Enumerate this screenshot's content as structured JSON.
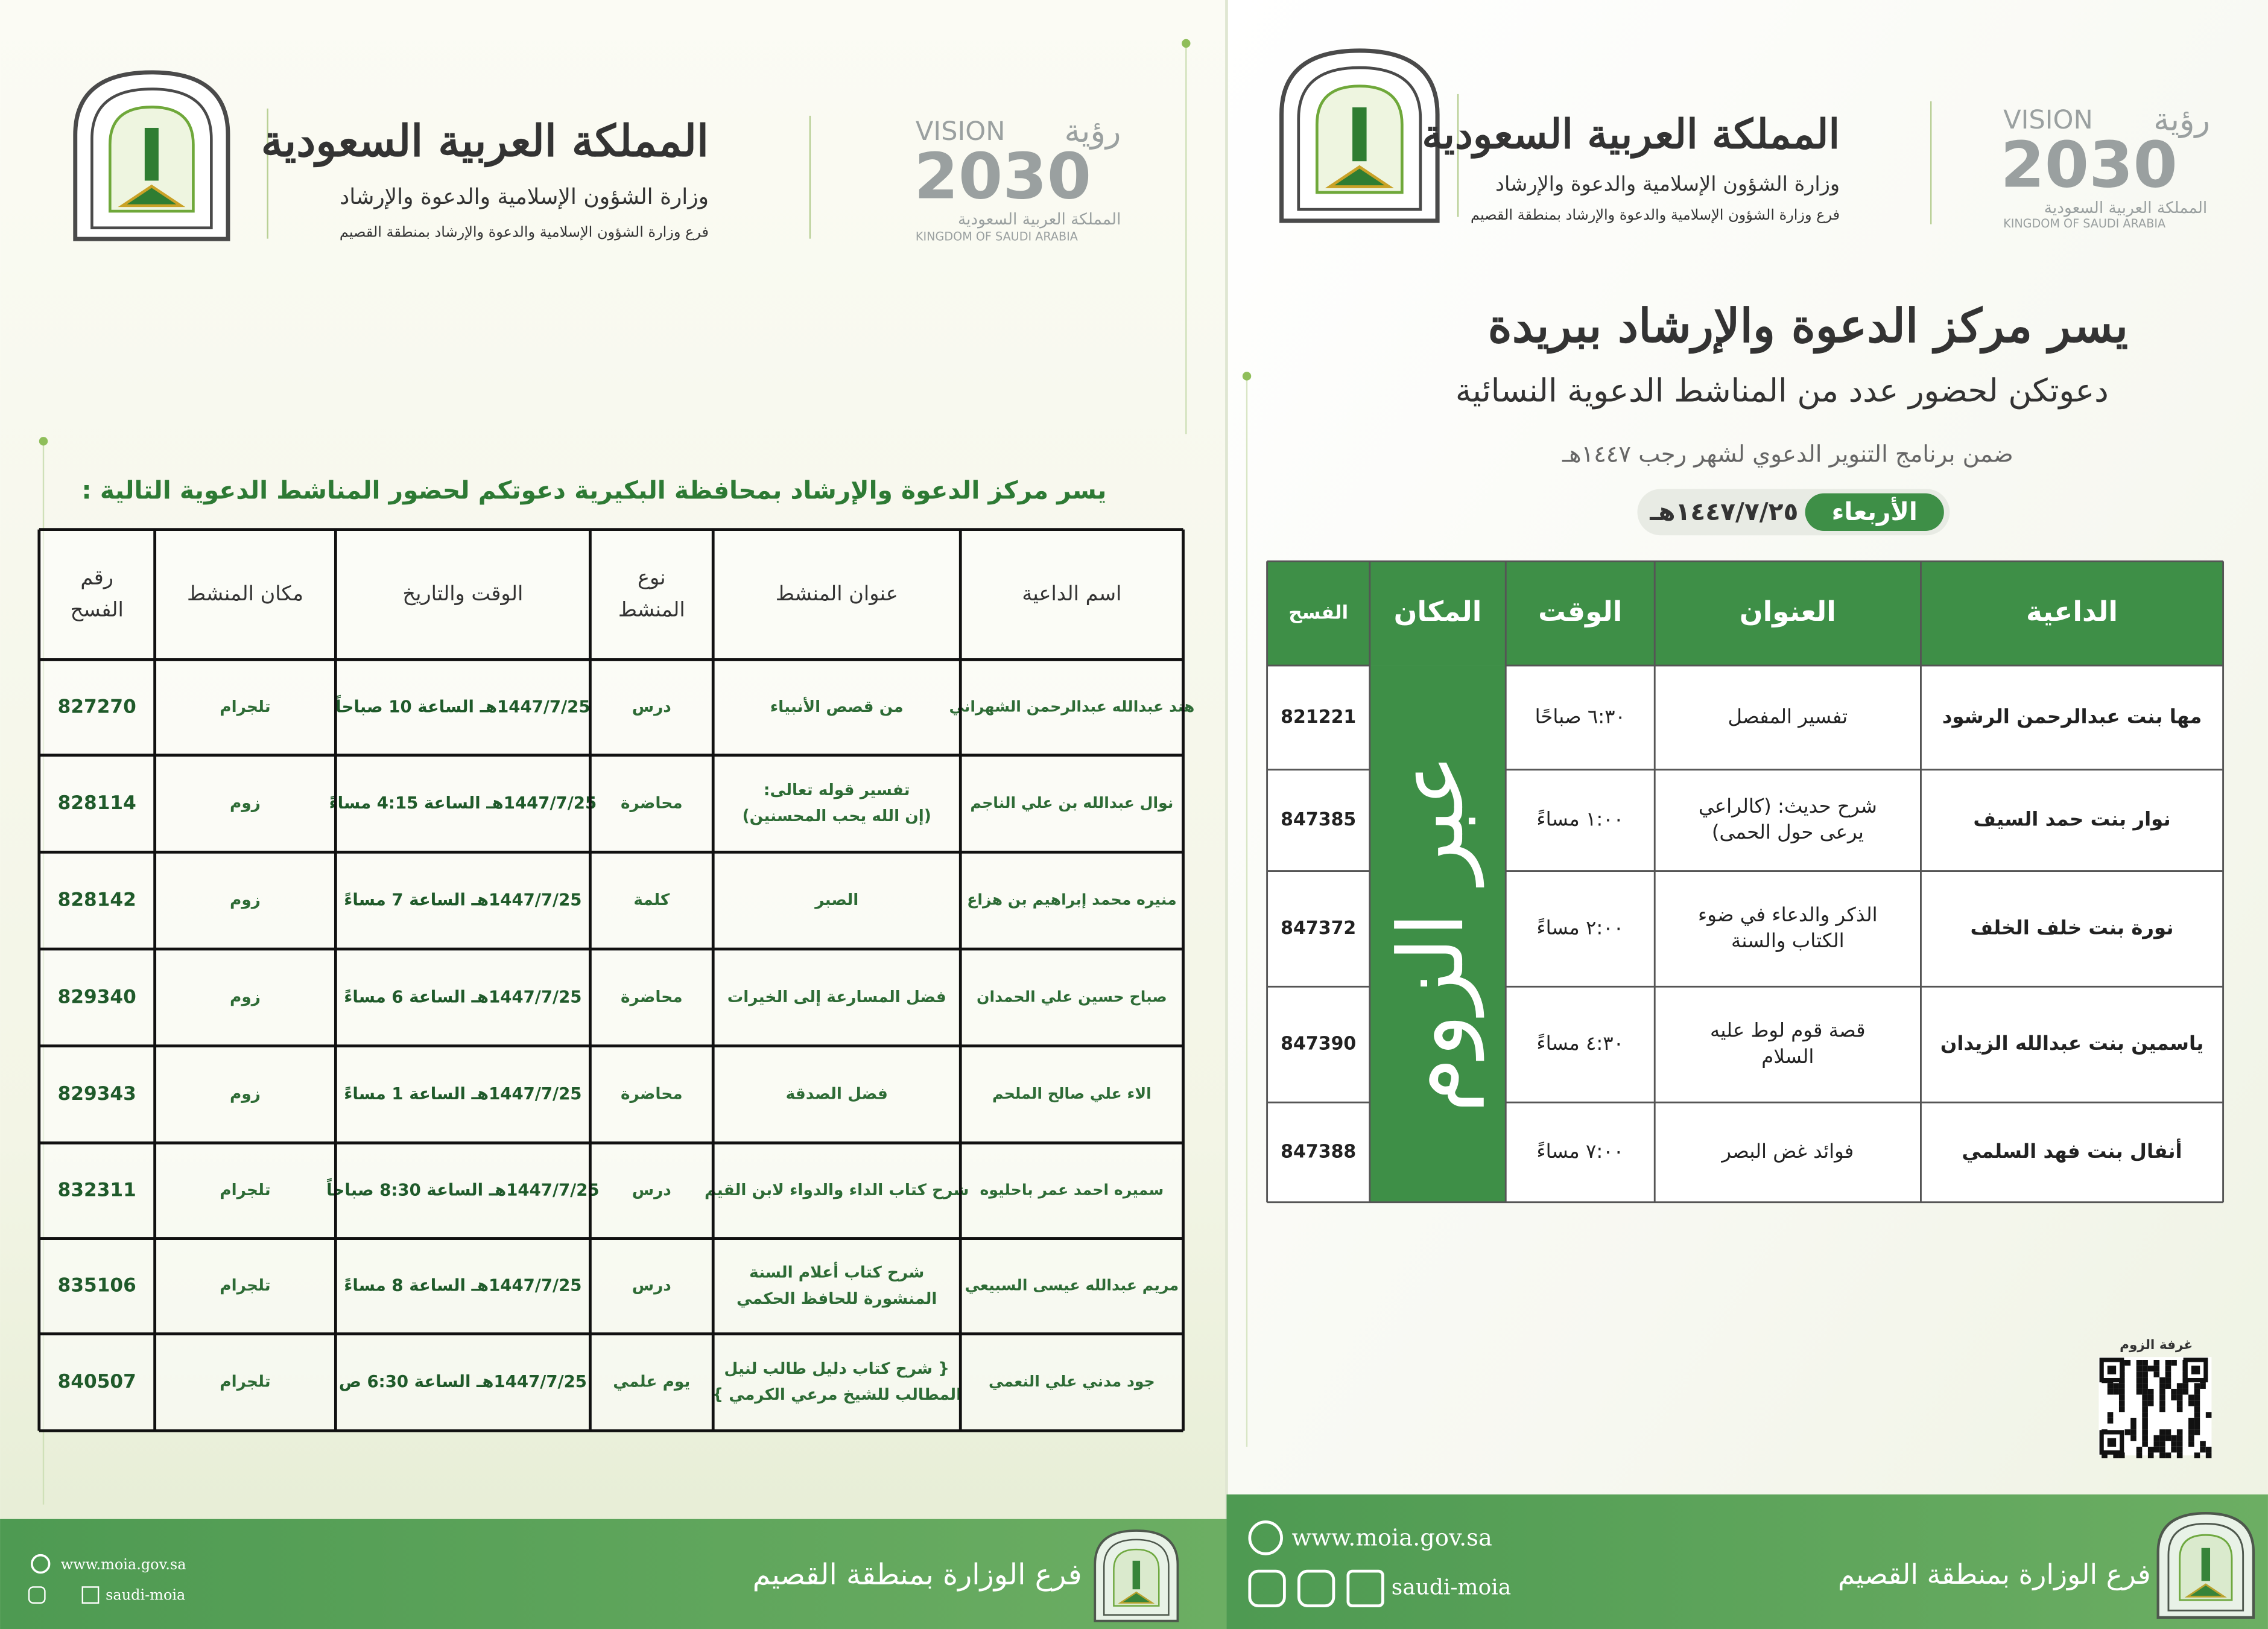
{
  "left": {
    "header": {
      "kingdom": "المملكة العربية السعودية",
      "ministry": "وزارة الشؤون الإسلامية والدعوة والإرشاد",
      "branch": "فرع وزارة الشؤون الإسلامية والدعوة والإرشاد بمنطقة القصيم"
    },
    "vision": {
      "word": "رؤية",
      "label": "VISION",
      "year": "2030",
      "country_ar": "المملكة العربية السعودية",
      "country_en": "KINGDOM OF SAUDI ARABIA"
    },
    "intro": "يسر مركز الدعوة والإرشاد بمحافظة البكيرية دعوتكم لحضور المناشط الدعوية التالية :",
    "table": {
      "headers": [
        "اسم الداعية",
        "عنوان المنشط",
        [
          "نوع",
          "المنشط"
        ],
        "الوقت والتاريخ",
        "مكان المنشط",
        [
          "رقم",
          "الفسح"
        ]
      ],
      "rows": [
        [
          "هند عبدالله عبدالرحمن الشهراني",
          "من قصص الأنبياء",
          "درس",
          "1447/7/25هـ الساعة 10 صباحاً",
          "تلجرام",
          "827270"
        ],
        [
          "نوال عبدالله بن علي الناجم",
          [
            "تفسير قوله تعالى:",
            "(إن الله يحب المحسنين)"
          ],
          "محاضرة",
          "1447/7/25هـ الساعة 4:15 مساءً",
          "زوم",
          "828114"
        ],
        [
          "منيره محمد إبراهيم بن هزاع",
          "الصبر",
          "كلمة",
          "1447/7/25هـ الساعة 7 مساءً",
          "زوم",
          "828142"
        ],
        [
          "صباح حسين علي الحمدان",
          "فضل المسارعة إلى الخيرات",
          "محاضرة",
          "1447/7/25هـ الساعة 6 مساءً",
          "زوم",
          "829340"
        ],
        [
          "الاء علي صالح الملحم",
          "فضل الصدقة",
          "محاضرة",
          "1447/7/25هـ الساعة 1 مساءً",
          "زوم",
          "829343"
        ],
        [
          "سميره احمد عمر باحليوه",
          "شرح كتاب الداء والدواء لابن القيم",
          "درس",
          "1447/7/25هـ الساعة 8:30 صباحاً",
          "تلجرام",
          "832311"
        ],
        [
          "مريم عبدالله عيسى السبيعي",
          [
            "شرح كتاب أعلام السنة",
            "المنشورة للحافظ الحكمي"
          ],
          "درس",
          "1447/7/25هـ الساعة 8 مساءً",
          "تلجرام",
          "835106"
        ],
        [
          "جود مدني علي النعمي",
          [
            "{ شرح كتاب دليل طالب لنيل",
            "المطالب للشيخ مرعي الكرمي }"
          ],
          "يوم علمي",
          "1447/7/25هـ الساعة 6:30 ص",
          "تلجرام",
          "840507"
        ]
      ]
    },
    "footer": {
      "website": "www.moia.gov.sa",
      "handle": "saudi-moia",
      "branch": "فرع الوزارة بمنطقة القصيم"
    }
  },
  "right": {
    "header": {
      "kingdom": "المملكة العربية السعودية",
      "ministry": "وزارة الشؤون الإسلامية والدعوة والإرشاد",
      "branch": "فرع وزارة الشؤون الإسلامية والدعوة والإرشاد بمنطقة القصيم"
    },
    "vision": {
      "word": "رؤية",
      "label": "VISION",
      "year": "2030",
      "country_ar": "المملكة العربية السعودية",
      "country_en": "KINGDOM OF SAUDI ARABIA"
    },
    "title": "يسر مركز الدعوة والإرشاد ببريدة",
    "subtitle": "دعوتكن لحضور عدد من المناشط الدعوية النسائية",
    "program": "ضمن برنامج التنوير الدعوي لشهر رجب ١٤٤٧هـ",
    "day": "الأربعاء",
    "date": "١٤٤٧/٧/٢٥هـ",
    "table": {
      "headers": [
        "الداعية",
        "العنوان",
        "الوقت",
        "المكان",
        "الفسح"
      ],
      "place": "عبر الزوم",
      "rows": [
        [
          "مها بنت عبدالرحمن الرشود",
          "تفسير المفصل",
          "٦:٣٠ صباحًا",
          "821221"
        ],
        [
          "نوار بنت حمد السيف",
          [
            "شرح حديث: (كالراعي",
            "يرعى حول الحمى)"
          ],
          "١:٠٠ مساءً",
          "847385"
        ],
        [
          "نورة بنت خلف الخلف",
          [
            "الذكر والدعاء في ضوء",
            "الكتاب والسنة"
          ],
          "٢:٠٠ مساءً",
          "847372"
        ],
        [
          "ياسمين بنت عبدالله الزيدان",
          [
            "قصة قوم لوط عليه",
            "السلام"
          ],
          "٤:٣٠ مساءً",
          "847390"
        ],
        [
          "أنفال بنت فهد السلمي",
          "فوائد غض البصر",
          "٧:٠٠ مساءً",
          "847388"
        ]
      ]
    },
    "qr_label": "غرفة الزوم",
    "footer": {
      "website": "www.moia.gov.sa",
      "handle": "saudi-moia",
      "branch": "فرع الوزارة بمنطقة القصيم"
    }
  }
}
